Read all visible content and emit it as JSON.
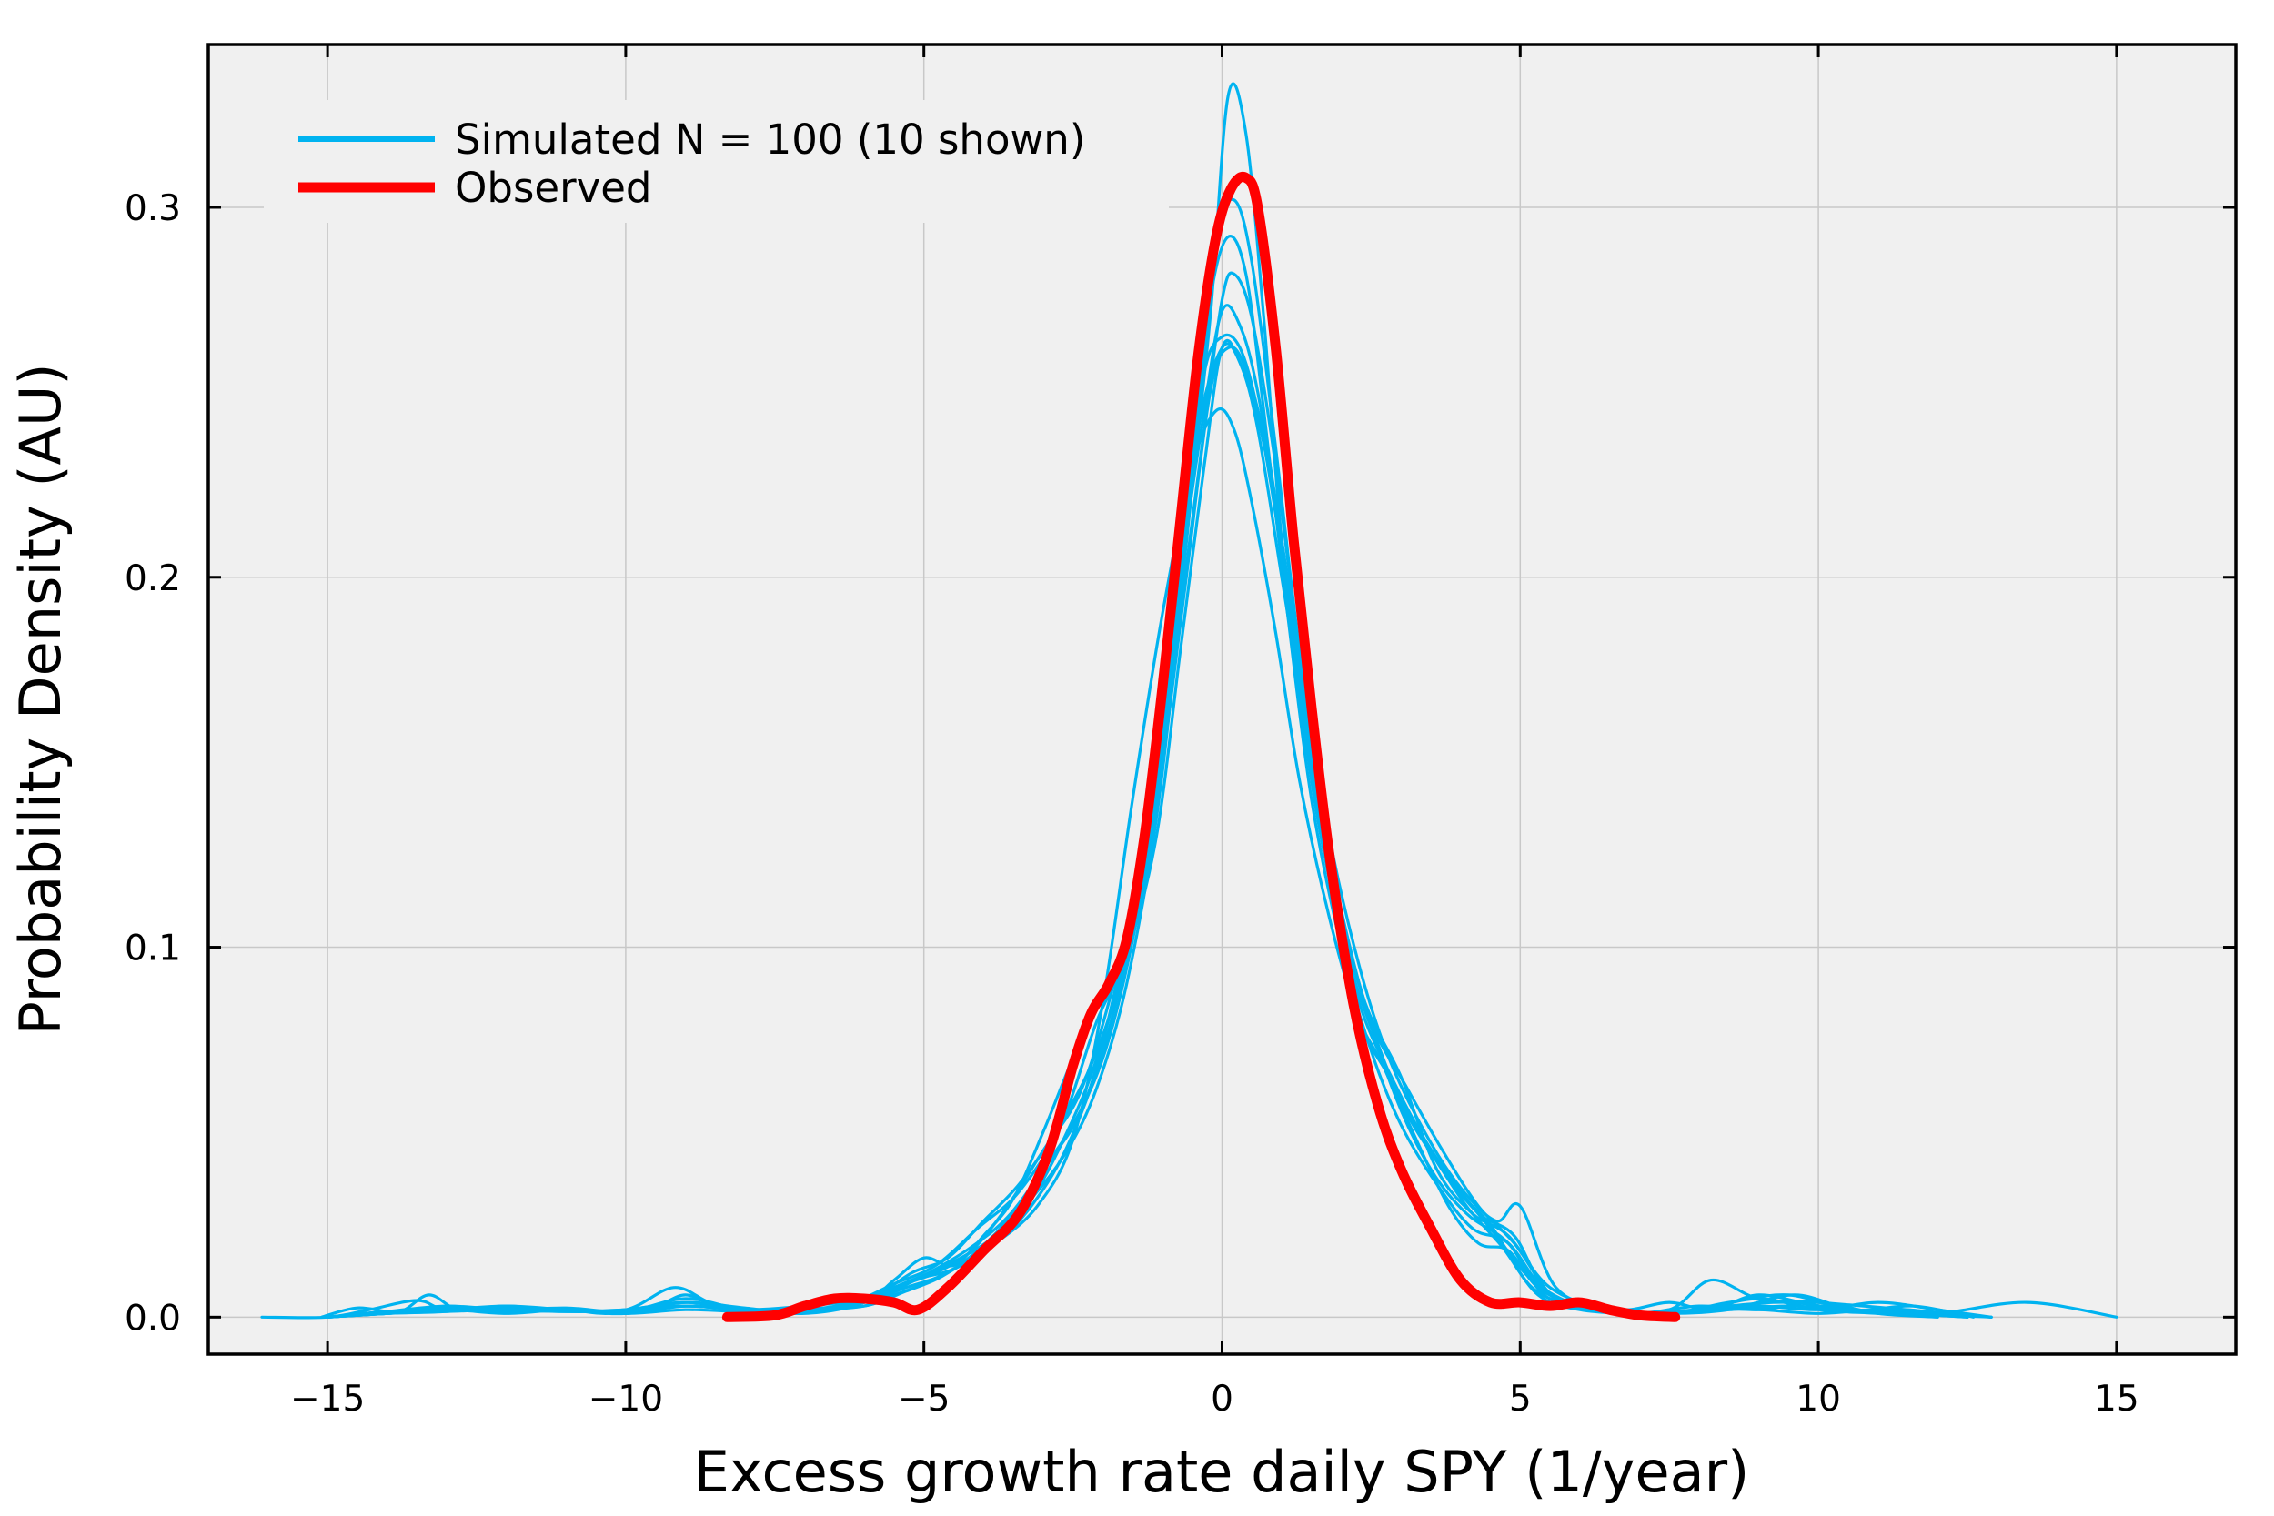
{
  "chart_data": {
    "type": "line",
    "title": "",
    "xlabel": "Excess growth rate daily SPY (1/year)",
    "ylabel": "Probability Density (AU)",
    "xlim": [
      -17.0,
      17.0
    ],
    "ylim": [
      -0.01,
      0.344
    ],
    "xticks": [
      -15,
      -10,
      -5,
      0,
      5,
      10,
      15
    ],
    "xtick_labels": [
      "−15",
      "−10",
      "−5",
      "0",
      "5",
      "10",
      "15"
    ],
    "yticks": [
      0.0,
      0.1,
      0.2,
      0.3
    ],
    "ytick_labels": [
      "0.0",
      "0.1",
      "0.2",
      "0.3"
    ],
    "grid": true,
    "legend_position": "top-left",
    "colors": {
      "simulated": "#00b3f0",
      "observed": "#ff0000",
      "plot_bg": "#f0f0f0",
      "grid": "#c8c8c8"
    },
    "series": [
      {
        "name": "Simulated N = 100 (10 shown)",
        "role": "simulated",
        "legend": true,
        "x": [
          -15.1,
          -14.5,
          -13.8,
          -13.3,
          -12.8,
          -12,
          -11,
          -10.3,
          -9.5,
          -9,
          -8.5,
          -8,
          -7,
          -6,
          -5.5,
          -5,
          -4.5,
          -4,
          -3.5,
          -3,
          -2.5,
          -2,
          -1.6,
          -1.2,
          -0.8,
          -0.4,
          0,
          0.3,
          0.6,
          1,
          1.4,
          1.8,
          2.2,
          2.7,
          3.2,
          3.8,
          4.3,
          4.8,
          5.3,
          6,
          6.8,
          7.5,
          8.2,
          9,
          10,
          11,
          12.9
        ],
        "y": [
          0,
          0.0025,
          0.0015,
          0.006,
          0.002,
          0.002,
          0.002,
          0.001,
          0.003,
          0.006,
          0.003,
          0.0015,
          0.002,
          0.004,
          0.01,
          0.016,
          0.014,
          0.022,
          0.032,
          0.05,
          0.07,
          0.087,
          0.1,
          0.14,
          0.19,
          0.24,
          0.262,
          0.258,
          0.24,
          0.2,
          0.16,
          0.12,
          0.085,
          0.068,
          0.05,
          0.03,
          0.02,
          0.018,
          0.008,
          0.003,
          0.002,
          0.004,
          0.002,
          0.006,
          0.003,
          0.0015,
          0
        ]
      },
      {
        "role": "simulated",
        "legend": false,
        "x": [
          -16.1,
          -15,
          -14.3,
          -13.5,
          -13,
          -12,
          -11,
          -10,
          -9.2,
          -8.6,
          -8,
          -7,
          -6.2,
          -5.5,
          -4.8,
          -4.2,
          -3.6,
          -3,
          -2.4,
          -1.9,
          -1.4,
          -1,
          -0.6,
          -0.3,
          0,
          0.3,
          0.6,
          1,
          1.4,
          1.9,
          2.4,
          3,
          3.6,
          4.2,
          4.8,
          5.5,
          6.5,
          7.5,
          8.2,
          9,
          10,
          11.5,
          12.9
        ],
        "y": [
          0,
          0,
          0.002,
          0.0045,
          0.002,
          0.0025,
          0.002,
          0.002,
          0.008,
          0.004,
          0.0015,
          0.002,
          0.003,
          0.008,
          0.012,
          0.018,
          0.03,
          0.045,
          0.06,
          0.085,
          0.12,
          0.16,
          0.215,
          0.255,
          0.265,
          0.262,
          0.245,
          0.21,
          0.165,
          0.115,
          0.085,
          0.065,
          0.04,
          0.028,
          0.022,
          0.008,
          0.002,
          0.002,
          0.01,
          0.005,
          0.004,
          0.002,
          0
        ]
      },
      {
        "role": "simulated",
        "legend": false,
        "x": [
          -15,
          -14,
          -13,
          -12,
          -11,
          -10,
          -9,
          -8,
          -7,
          -6,
          -5.2,
          -4.6,
          -4,
          -3.4,
          -2.8,
          -2.2,
          -1.7,
          -1.2,
          -0.8,
          -0.4,
          -0.1,
          0.2,
          0.5,
          0.9,
          1.3,
          1.8,
          2.3,
          2.9,
          3.5,
          4.1,
          4.8,
          5.4,
          6.2,
          7,
          8,
          9,
          10,
          11,
          12
        ],
        "y": [
          0,
          0.001,
          0.0015,
          0.003,
          0.0015,
          0.002,
          0.004,
          0.0025,
          0.001,
          0.004,
          0.012,
          0.016,
          0.026,
          0.036,
          0.05,
          0.068,
          0.092,
          0.13,
          0.18,
          0.24,
          0.29,
          0.302,
          0.285,
          0.235,
          0.18,
          0.125,
          0.09,
          0.06,
          0.04,
          0.028,
          0.02,
          0.006,
          0.002,
          0.001,
          0.003,
          0.002,
          0.004,
          0.001,
          0
        ]
      },
      {
        "role": "simulated",
        "legend": false,
        "x": [
          -15,
          -14,
          -13,
          -12,
          -11,
          -10,
          -9,
          -8,
          -7,
          -6.2,
          -5.5,
          -4.8,
          -4.1,
          -3.4,
          -2.7,
          -2.1,
          -1.6,
          -1.1,
          -0.7,
          -0.3,
          0,
          0.3,
          0.7,
          1.1,
          1.5,
          2,
          2.5,
          3.1,
          3.7,
          4.3,
          4.9,
          5.6,
          6.5,
          7.5,
          8.5,
          9.6,
          10.6,
          11.6,
          12.6
        ],
        "y": [
          0,
          0.0015,
          0.003,
          0.002,
          0.0025,
          0.0015,
          0.005,
          0.002,
          0.002,
          0.004,
          0.009,
          0.014,
          0.024,
          0.034,
          0.052,
          0.08,
          0.098,
          0.13,
          0.18,
          0.23,
          0.262,
          0.258,
          0.236,
          0.195,
          0.15,
          0.11,
          0.08,
          0.062,
          0.045,
          0.03,
          0.02,
          0.005,
          0.002,
          0.001,
          0.002,
          0.006,
          0.002,
          0.003,
          0
        ]
      },
      {
        "role": "simulated",
        "legend": false,
        "x": [
          -15,
          -14,
          -13,
          -12,
          -11,
          -10,
          -9,
          -8,
          -7,
          -6,
          -5.2,
          -4.5,
          -3.8,
          -3.2,
          -2.6,
          -2,
          -1.5,
          -1,
          -0.6,
          -0.2,
          0.1,
          0.4,
          0.7,
          1,
          1.4,
          1.8,
          2.3,
          2.8,
          3.4,
          4,
          4.6,
          5.2,
          6,
          7,
          8,
          9,
          10,
          11,
          12,
          12.9
        ],
        "y": [
          0,
          0.001,
          0.002,
          0.001,
          0.002,
          0.001,
          0.003,
          0.002,
          0.003,
          0.005,
          0.01,
          0.013,
          0.02,
          0.03,
          0.046,
          0.072,
          0.105,
          0.15,
          0.21,
          0.27,
          0.33,
          0.32,
          0.27,
          0.21,
          0.16,
          0.12,
          0.09,
          0.066,
          0.048,
          0.034,
          0.022,
          0.01,
          0.003,
          0.001,
          0.002,
          0.003,
          0.002,
          0.004,
          0.002,
          0
        ]
      },
      {
        "role": "simulated",
        "legend": false,
        "x": [
          -15,
          -14,
          -13,
          -12,
          -11,
          -10,
          -9,
          -8,
          -7,
          -6,
          -5.5,
          -5,
          -4.4,
          -3.8,
          -3.1,
          -2.5,
          -2,
          -1.5,
          -1,
          -0.5,
          -0.1,
          0.2,
          0.5,
          0.9,
          1.3,
          1.8,
          2.3,
          2.8,
          3.3,
          3.9,
          4.5,
          5.2,
          6,
          7,
          8,
          9,
          10,
          11,
          12,
          13.5,
          15
        ],
        "y": [
          0,
          0.001,
          0.002,
          0.0015,
          0.002,
          0.001,
          0.002,
          0.0015,
          0.002,
          0.003,
          0.006,
          0.009,
          0.014,
          0.02,
          0.03,
          0.048,
          0.085,
          0.14,
          0.19,
          0.23,
          0.245,
          0.24,
          0.22,
          0.185,
          0.145,
          0.108,
          0.08,
          0.065,
          0.05,
          0.035,
          0.025,
          0.008,
          0.003,
          0.001,
          0.002,
          0.002,
          0.001,
          0.002,
          0.001,
          0.004,
          0
        ]
      },
      {
        "role": "simulated",
        "legend": false,
        "x": [
          -15,
          -14,
          -13,
          -12,
          -11,
          -10,
          -9,
          -8,
          -7,
          -6,
          -5.3,
          -4.6,
          -3.9,
          -3.2,
          -2.6,
          -2.1,
          -1.6,
          -1.1,
          -0.7,
          -0.3,
          0,
          0.3,
          0.6,
          1,
          1.4,
          1.8,
          2.3,
          2.9,
          3.5,
          4.1,
          4.7,
          5.3,
          6,
          7,
          8,
          9,
          10,
          11,
          12
        ],
        "y": [
          0,
          0.0015,
          0.0025,
          0.002,
          0.0015,
          0.002,
          0.003,
          0.002,
          0.0015,
          0.004,
          0.008,
          0.012,
          0.02,
          0.032,
          0.05,
          0.07,
          0.1,
          0.145,
          0.2,
          0.245,
          0.272,
          0.268,
          0.25,
          0.21,
          0.165,
          0.12,
          0.085,
          0.063,
          0.045,
          0.03,
          0.019,
          0.006,
          0.002,
          0.001,
          0.002,
          0.005,
          0.002,
          0.001,
          0
        ]
      },
      {
        "role": "simulated",
        "legend": false,
        "x": [
          -15,
          -14,
          -13,
          -12,
          -11,
          -10,
          -9,
          -8,
          -7,
          -6,
          -5.3,
          -4.7,
          -4.1,
          -3.5,
          -2.9,
          -2.3,
          -1.8,
          -1.3,
          -0.9,
          -0.5,
          -0.2,
          0.1,
          0.4,
          0.7,
          1.1,
          1.5,
          2,
          2.5,
          3,
          3.6,
          4.2,
          4.8,
          5.5,
          6.5,
          7.5,
          8.5,
          9.5,
          10.5,
          11.5,
          12.5
        ],
        "y": [
          0,
          0.001,
          0.002,
          0.003,
          0.002,
          0.001,
          0.004,
          0.002,
          0.002,
          0.003,
          0.007,
          0.011,
          0.018,
          0.028,
          0.042,
          0.058,
          0.088,
          0.13,
          0.18,
          0.232,
          0.275,
          0.292,
          0.282,
          0.245,
          0.19,
          0.14,
          0.1,
          0.072,
          0.052,
          0.036,
          0.024,
          0.02,
          0.006,
          0.002,
          0.001,
          0.004,
          0.006,
          0.002,
          0.002,
          0
        ]
      },
      {
        "role": "simulated",
        "legend": false,
        "x": [
          -15,
          -14,
          -13,
          -12,
          -11,
          -10,
          -9,
          -8,
          -7,
          -6,
          -5.4,
          -4.8,
          -4.2,
          -3.6,
          -3,
          -2.4,
          -1.9,
          -1.4,
          -1,
          -0.6,
          -0.2,
          0.1,
          0.4,
          0.8,
          1.2,
          1.6,
          2.1,
          2.6,
          3.1,
          3.7,
          4.3,
          4.9,
          5.5,
          6.5,
          7.5,
          8.5,
          9.5,
          10.5,
          11.5,
          12.5
        ],
        "y": [
          0,
          0.001,
          0.0015,
          0.002,
          0.002,
          0.0015,
          0.003,
          0.002,
          0.002,
          0.004,
          0.008,
          0.013,
          0.019,
          0.027,
          0.04,
          0.055,
          0.075,
          0.11,
          0.15,
          0.2,
          0.25,
          0.262,
          0.256,
          0.23,
          0.18,
          0.135,
          0.098,
          0.074,
          0.055,
          0.04,
          0.028,
          0.022,
          0.006,
          0.002,
          0.001,
          0.003,
          0.004,
          0.002,
          0.001,
          0
        ]
      },
      {
        "role": "simulated",
        "legend": false,
        "x": [
          -15,
          -14,
          -13,
          -12,
          -11,
          -10,
          -9,
          -8,
          -7,
          -6,
          -5.2,
          -4.5,
          -3.8,
          -3.2,
          -2.6,
          -2.1,
          -1.6,
          -1.1,
          -0.7,
          -0.3,
          0,
          0.2,
          0.5,
          0.9,
          1.3,
          1.8,
          2.3,
          2.8,
          3.4,
          4,
          4.6,
          5,
          5.6,
          6.5,
          7.5,
          8.5,
          9.5,
          10.5,
          11.5,
          12.5
        ],
        "y": [
          0,
          0.0015,
          0.002,
          0.002,
          0.0015,
          0.002,
          0.004,
          0.002,
          0.002,
          0.004,
          0.01,
          0.015,
          0.022,
          0.032,
          0.045,
          0.062,
          0.09,
          0.135,
          0.19,
          0.24,
          0.275,
          0.282,
          0.27,
          0.23,
          0.18,
          0.13,
          0.095,
          0.07,
          0.05,
          0.035,
          0.026,
          0.03,
          0.008,
          0.002,
          0.001,
          0.002,
          0.003,
          0.002,
          0.001,
          0
        ]
      },
      {
        "name": "Observed",
        "role": "observed",
        "legend": true,
        "x": [
          -8.3,
          -7.5,
          -7,
          -6.5,
          -6,
          -5.5,
          -5.1,
          -4.6,
          -4,
          -3.4,
          -2.9,
          -2.5,
          -2.2,
          -1.9,
          -1.6,
          -1.3,
          -1,
          -0.7,
          -0.4,
          -0.1,
          0.15,
          0.4,
          0.6,
          0.9,
          1.2,
          1.5,
          1.8,
          2.2,
          2.6,
          3,
          3.5,
          4,
          4.5,
          5,
          5.5,
          6,
          6.5,
          7,
          7.6
        ],
        "y": [
          0,
          0.0005,
          0.003,
          0.005,
          0.005,
          0.004,
          0.002,
          0.008,
          0.018,
          0.028,
          0.045,
          0.068,
          0.082,
          0.09,
          0.102,
          0.13,
          0.17,
          0.215,
          0.26,
          0.292,
          0.305,
          0.308,
          0.3,
          0.262,
          0.21,
          0.165,
          0.125,
          0.085,
          0.058,
          0.04,
          0.024,
          0.01,
          0.004,
          0.004,
          0.003,
          0.004,
          0.002,
          0.0005,
          0
        ]
      }
    ]
  }
}
